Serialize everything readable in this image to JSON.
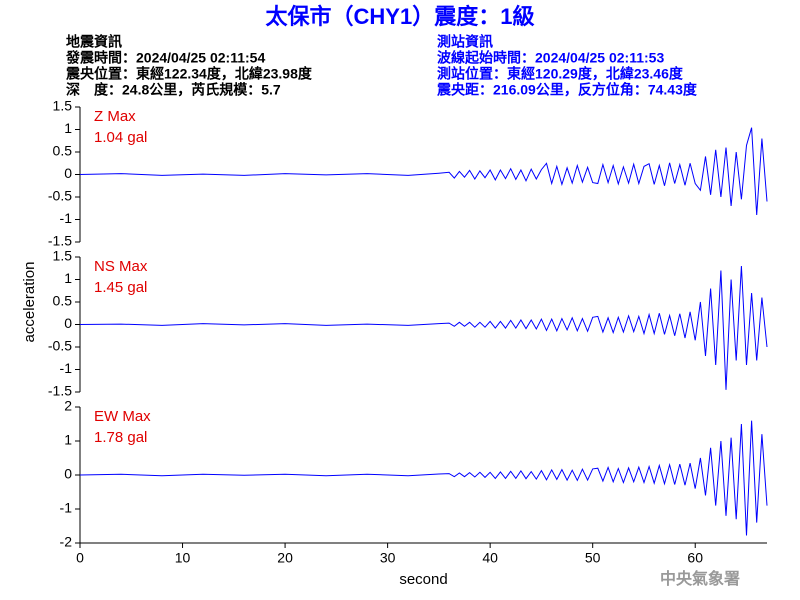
{
  "header": {
    "title": "太保市（CHY1）震度：1級",
    "left": [
      "地震資訊",
      "發震時間：2024/04/25 02:11:54",
      "震央位置：東經122.34度，北緯23.98度",
      "深　度：24.8公里，芮氏規模：5.7"
    ],
    "right": [
      "測站資訊",
      "波線起始時間：2024/04/25 02:11:53",
      "測站位置：東經120.29度，北緯23.46度",
      "震央距：216.09公里，反方位角：74.43度"
    ]
  },
  "ylabel": "acceleration",
  "footer": "中央氣象署",
  "chart_data": [
    {
      "type": "line",
      "label": "Z Max",
      "max_label": "1.04 gal",
      "color": "#0000ff",
      "ylim": [
        -1.5,
        1.5
      ],
      "yticks": [
        -1.5,
        -1,
        -0.5,
        0,
        0.5,
        1,
        1.5
      ],
      "x": [
        0,
        4,
        8,
        12,
        16,
        20,
        24,
        28,
        32,
        35,
        36,
        36.5,
        37,
        37.5,
        38,
        38.5,
        39,
        39.5,
        40,
        40.5,
        41,
        41.5,
        42,
        42.5,
        43,
        43.5,
        44,
        44.5,
        45,
        45.5,
        46,
        46.5,
        47,
        47.5,
        48,
        48.5,
        49,
        49.5,
        50,
        50.5,
        51,
        51.5,
        52,
        52.5,
        53,
        53.5,
        54,
        54.5,
        55,
        55.5,
        56,
        56.5,
        57,
        57.5,
        58,
        58.5,
        59,
        59.5,
        60,
        60.5,
        61,
        61.5,
        62,
        62.5,
        63,
        63.5,
        64,
        64.5,
        65,
        65.5,
        66,
        66.5,
        67
      ],
      "values": [
        0,
        0.02,
        -0.02,
        0.01,
        -0.02,
        0.02,
        -0.01,
        0.02,
        -0.02,
        0.03,
        0.05,
        -0.08,
        0.07,
        -0.06,
        0.09,
        -0.1,
        0.08,
        -0.07,
        0.1,
        -0.12,
        0.1,
        -0.09,
        0.13,
        -0.11,
        0.1,
        -0.14,
        0.12,
        -0.1,
        0.11,
        0.25,
        -0.2,
        0.18,
        -0.22,
        0.15,
        -0.19,
        0.2,
        -0.17,
        0.16,
        -0.18,
        -0.2,
        0.22,
        -0.18,
        0.2,
        -0.21,
        0.17,
        -0.19,
        0.23,
        -0.2,
        0.18,
        0.24,
        -0.22,
        0.2,
        -0.25,
        0.26,
        -0.2,
        0.22,
        -0.24,
        0.25,
        -0.2,
        -0.35,
        0.4,
        -0.45,
        0.55,
        -0.5,
        0.6,
        -0.7,
        0.5,
        -0.55,
        0.65,
        1.04,
        -0.9,
        0.8,
        -0.6
      ]
    },
    {
      "type": "line",
      "label": "NS Max",
      "max_label": "1.45 gal",
      "color": "#0000ff",
      "ylim": [
        -1.5,
        1.5
      ],
      "yticks": [
        -1.5,
        -1,
        -0.5,
        0,
        0.5,
        1,
        1.5
      ],
      "x": [
        0,
        4,
        8,
        12,
        16,
        20,
        24,
        28,
        32,
        35,
        36,
        36.5,
        37,
        37.5,
        38,
        38.5,
        39,
        39.5,
        40,
        40.5,
        41,
        41.5,
        42,
        42.5,
        43,
        43.5,
        44,
        44.5,
        45,
        45.5,
        46,
        46.5,
        47,
        47.5,
        48,
        48.5,
        49,
        49.5,
        50,
        50.5,
        51,
        51.5,
        52,
        52.5,
        53,
        53.5,
        54,
        54.5,
        55,
        55.5,
        56,
        56.5,
        57,
        57.5,
        58,
        58.5,
        59,
        59.5,
        60,
        60.5,
        61,
        61.5,
        62,
        62.5,
        63,
        63.5,
        64,
        64.5,
        65,
        65.5,
        66,
        66.5,
        67
      ],
      "values": [
        0,
        0.01,
        -0.02,
        0.02,
        -0.01,
        0.02,
        -0.02,
        0.01,
        -0.02,
        0.02,
        0.03,
        -0.04,
        0.05,
        -0.04,
        0.05,
        -0.06,
        0.05,
        -0.06,
        0.07,
        -0.08,
        0.07,
        -0.08,
        0.09,
        -0.08,
        0.1,
        -0.09,
        0.1,
        -0.1,
        0.12,
        -0.13,
        0.12,
        -0.14,
        0.13,
        -0.12,
        0.15,
        -0.14,
        0.13,
        -0.15,
        0.16,
        0.18,
        -0.17,
        0.15,
        -0.18,
        0.16,
        -0.17,
        0.19,
        -0.16,
        0.18,
        -0.2,
        0.22,
        -0.2,
        0.25,
        -0.22,
        0.2,
        -0.25,
        0.24,
        -0.3,
        0.28,
        -0.35,
        0.5,
        -0.7,
        0.8,
        -0.9,
        1.2,
        -1.45,
        1.0,
        -0.8,
        1.3,
        -0.9,
        0.7,
        -0.8,
        0.6,
        -0.5
      ]
    },
    {
      "type": "line",
      "label": "EW Max",
      "max_label": "1.78 gal",
      "color": "#0000ff",
      "ylim": [
        -2,
        2
      ],
      "yticks": [
        -2,
        -1,
        0,
        1,
        2
      ],
      "xlim": [
        0,
        67
      ],
      "xticks": [
        0,
        10,
        20,
        30,
        40,
        50,
        60
      ],
      "xlabel": "second",
      "x": [
        0,
        4,
        8,
        12,
        16,
        20,
        24,
        28,
        32,
        35,
        36,
        36.5,
        37,
        37.5,
        38,
        38.5,
        39,
        39.5,
        40,
        40.5,
        41,
        41.5,
        42,
        42.5,
        43,
        43.5,
        44,
        44.5,
        45,
        45.5,
        46,
        46.5,
        47,
        47.5,
        48,
        48.5,
        49,
        49.5,
        50,
        50.5,
        51,
        51.5,
        52,
        52.5,
        53,
        53.5,
        54,
        54.5,
        55,
        55.5,
        56,
        56.5,
        57,
        57.5,
        58,
        58.5,
        59,
        59.5,
        60,
        60.5,
        61,
        61.5,
        62,
        62.5,
        63,
        63.5,
        64,
        64.5,
        65,
        65.5,
        66,
        66.5,
        67
      ],
      "values": [
        0,
        0.02,
        -0.02,
        0.02,
        -0.01,
        0.02,
        -0.02,
        0.02,
        -0.02,
        0.03,
        0.04,
        -0.05,
        0.06,
        -0.05,
        0.07,
        -0.06,
        0.08,
        -0.07,
        0.08,
        -0.1,
        0.09,
        -0.1,
        0.11,
        -0.1,
        0.12,
        -0.11,
        0.1,
        -0.12,
        0.13,
        -0.14,
        0.15,
        -0.13,
        0.16,
        -0.15,
        0.14,
        -0.16,
        0.17,
        -0.15,
        0.18,
        0.2,
        -0.18,
        0.22,
        -0.2,
        0.19,
        -0.22,
        0.21,
        -0.2,
        0.23,
        -0.22,
        0.25,
        -0.24,
        0.28,
        -0.26,
        0.3,
        -0.28,
        0.32,
        -0.3,
        0.35,
        -0.4,
        0.5,
        -0.6,
        0.8,
        -0.9,
        1.0,
        -1.2,
        1.1,
        -1.3,
        1.5,
        -1.78,
        1.6,
        -1.4,
        1.2,
        -0.9
      ]
    }
  ]
}
